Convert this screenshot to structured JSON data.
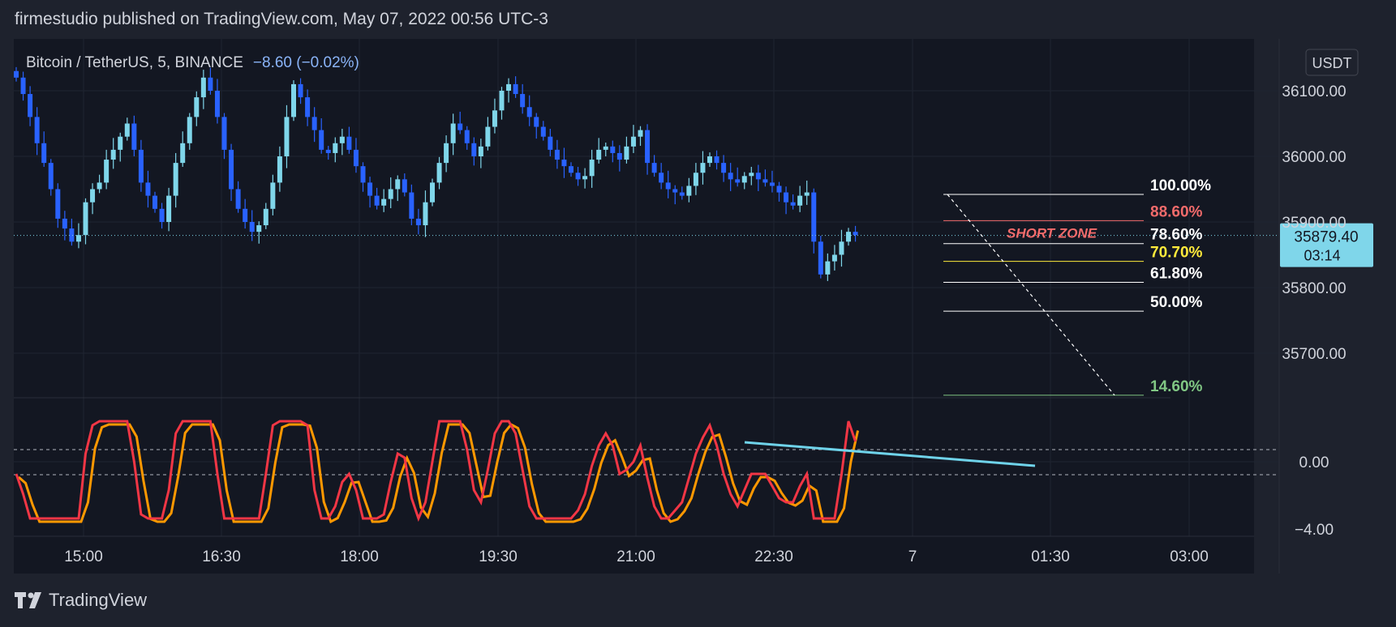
{
  "header": {
    "published": "firmestudio published on TradingView.com, May 07, 2022 00:56 UTC-3"
  },
  "footer": {
    "brand": "TradingView"
  },
  "colors": {
    "bg": "#131722",
    "frame": "#1e222d",
    "up": "#7fd6ea",
    "down": "#2962ff",
    "text": "#d1d4dc",
    "fib_white": "#ffffff",
    "fib_red": "#f26b6b",
    "fib_yellow": "#ffeb3b",
    "fib_green": "#81c784",
    "osc_red": "#f23645",
    "osc_orange": "#ff9800",
    "trendline": "#6fd3ea",
    "price_tag": "#7fd6ea"
  },
  "chart_data": {
    "type": "candlestick",
    "symbol": {
      "name": "Bitcoin / TetherUS",
      "interval": "5",
      "exchange": "BINANCE",
      "change": "−8.60 (−0.02%)"
    },
    "currency": "USDT",
    "price_axis": {
      "ticks": [
        "36100.00",
        "36000.00",
        "35900.00",
        "35800.00",
        "35700.00"
      ],
      "ylim": [
        35625,
        36175
      ]
    },
    "oscillator_axis": {
      "ticks": [
        "0.00",
        "−4.00"
      ]
    },
    "time_axis": {
      "ticks": [
        "15:00",
        "16:30",
        "18:00",
        "19:30",
        "21:00",
        "22:30",
        "7",
        "01:30",
        "03:00"
      ]
    },
    "last_price": "35879.40",
    "countdown": "03:14",
    "fib_levels": [
      {
        "label": "100.00%",
        "price": 35942,
        "color": "#ffffff"
      },
      {
        "label": "88.60%",
        "price": 35902,
        "color": "#f26b6b"
      },
      {
        "label": "78.60%",
        "price": 35867,
        "color": "#ffffff"
      },
      {
        "label": "70.70%",
        "price": 35840,
        "color": "#ffeb3b"
      },
      {
        "label": "61.80%",
        "price": 35808,
        "color": "#ffffff"
      },
      {
        "label": "50.00%",
        "price": 35764,
        "color": "#ffffff"
      },
      {
        "label": "14.60%",
        "price": 35636,
        "color": "#81c784"
      }
    ],
    "annotation": "SHORT ZONE",
    "close_series": [
      36120,
      36095,
      36060,
      36020,
      35990,
      35950,
      35905,
      35890,
      35870,
      35880,
      35930,
      35950,
      35960,
      35995,
      36010,
      36030,
      36050,
      36010,
      35960,
      35940,
      35920,
      35900,
      35940,
      35990,
      36020,
      36060,
      36090,
      36120,
      36100,
      36060,
      36010,
      35950,
      35920,
      35900,
      35885,
      35895,
      35920,
      35960,
      36000,
      36060,
      36110,
      36090,
      36060,
      36040,
      36010,
      36005,
      36020,
      36030,
      36010,
      35985,
      35960,
      35940,
      35925,
      35935,
      35950,
      35965,
      35945,
      35905,
      35895,
      35930,
      35960,
      35990,
      36020,
      36050,
      36040,
      36020,
      36000,
      36015,
      36045,
      36070,
      36100,
      36110,
      36095,
      36075,
      36060,
      36045,
      36030,
      36010,
      35995,
      35985,
      35975,
      35965,
      35970,
      35995,
      36010,
      36015,
      36005,
      35995,
      36015,
      36030,
      36040,
      35990,
      35975,
      35960,
      35950,
      35945,
      35940,
      35955,
      35975,
      35990,
      36000,
      35990,
      35975,
      35965,
      35960,
      35970,
      35975,
      35965,
      35960,
      35955,
      35945,
      35930,
      35925,
      35940,
      35945,
      35870,
      35820,
      35840,
      35850,
      35870,
      35885,
      35880
    ]
  }
}
